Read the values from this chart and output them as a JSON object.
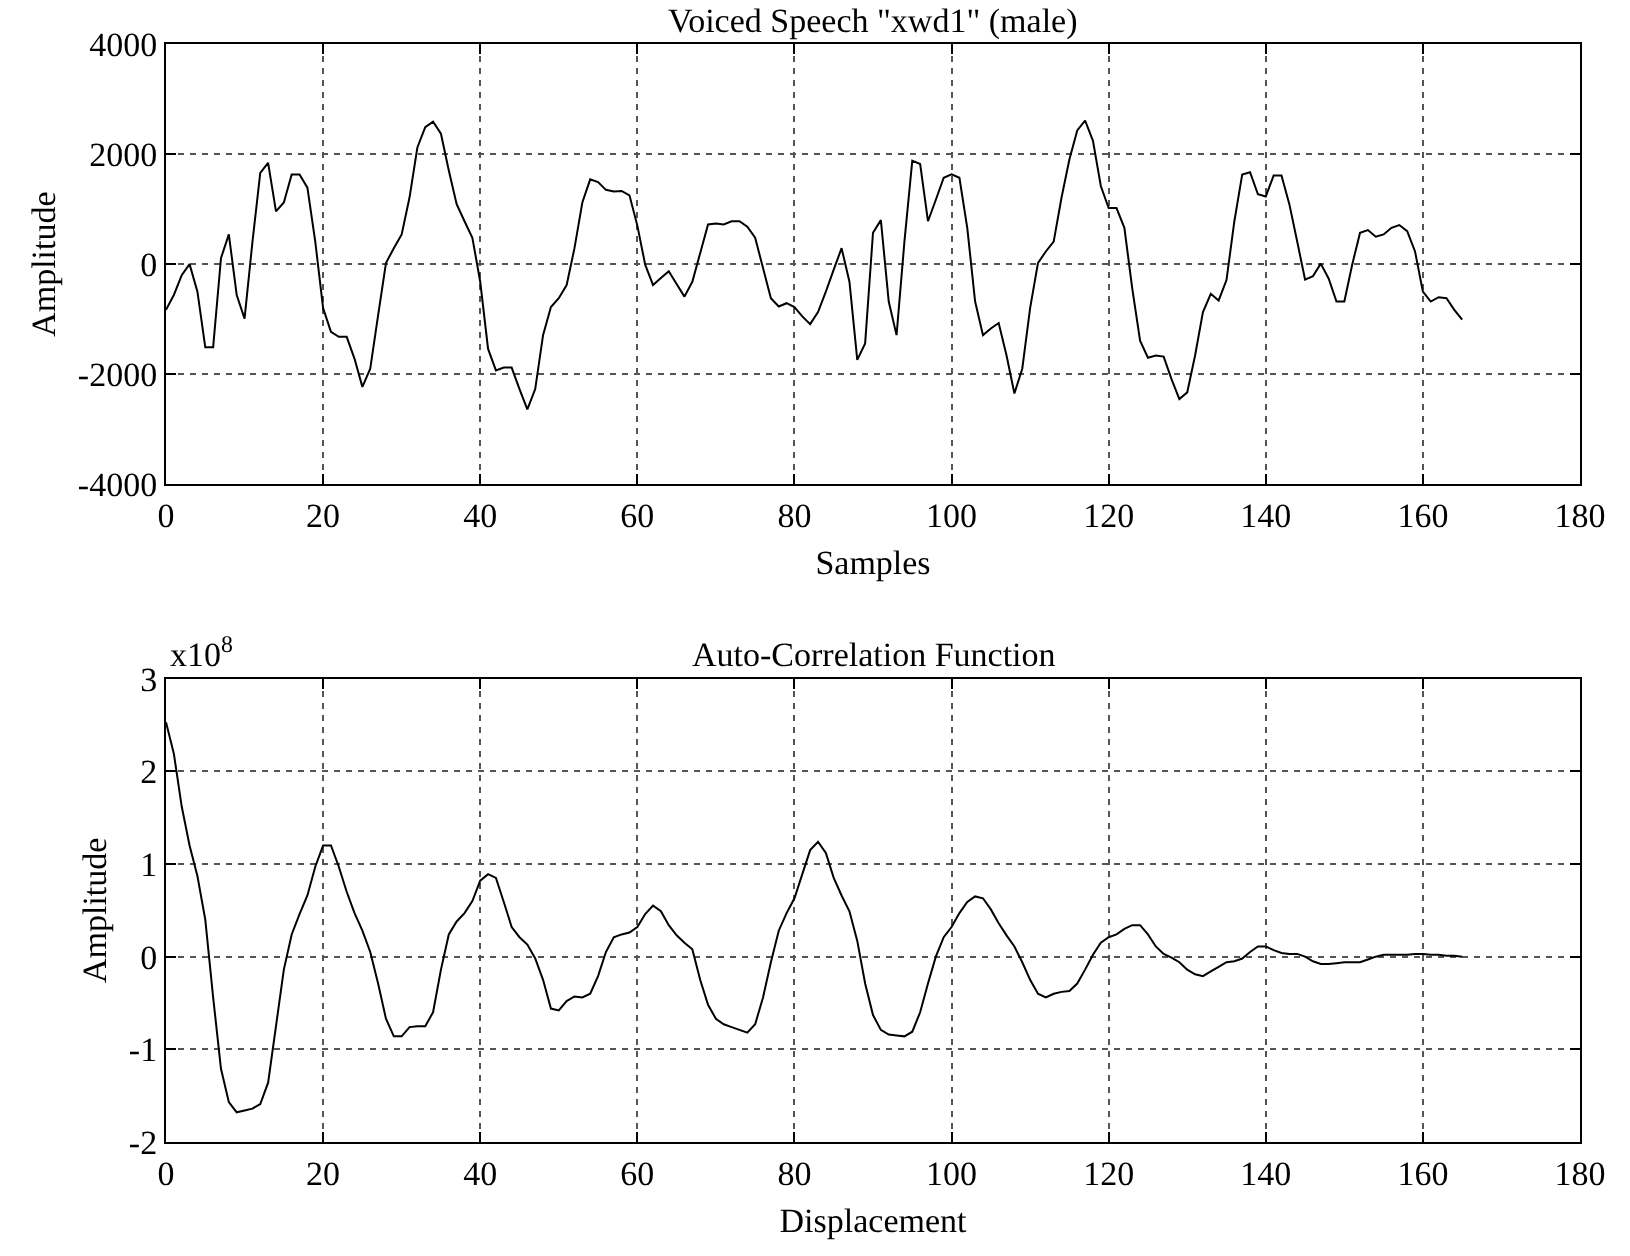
{
  "chart_data": [
    {
      "type": "line",
      "title": "Voiced Speech \"xwd1\" (male)",
      "xlabel": "Samples",
      "ylabel": "Amplitude",
      "xlim": [
        0,
        180
      ],
      "xticks": [
        0,
        20,
        40,
        60,
        80,
        100,
        120,
        140,
        160,
        180
      ],
      "ylim": [
        -4000,
        4000
      ],
      "yticks": [
        -4000,
        -2000,
        0,
        2000,
        4000
      ],
      "grid": true,
      "line_style": "solid",
      "series": [
        {
          "color": "#000000",
          "x": [
            0,
            1,
            2,
            3,
            4,
            5,
            6,
            7,
            8,
            9,
            10,
            11,
            12,
            13,
            14,
            15,
            16,
            17,
            18,
            19,
            20,
            21,
            22,
            23,
            24,
            25,
            26,
            27,
            28,
            29,
            30,
            31,
            32,
            33,
            34,
            35,
            36,
            37,
            38,
            39,
            40,
            41,
            42,
            43,
            44,
            45,
            46,
            47,
            48,
            49,
            50,
            51,
            52,
            53,
            54,
            55,
            56,
            57,
            58,
            59,
            60,
            61,
            62,
            63,
            64,
            65,
            66,
            67,
            68,
            69,
            70,
            71,
            72,
            73,
            74,
            75,
            76,
            77,
            78,
            79,
            80,
            81,
            82,
            83,
            84,
            85,
            86,
            87,
            88,
            89,
            90,
            91,
            92,
            93,
            94,
            95,
            96,
            97,
            98,
            99,
            100,
            101,
            102,
            103,
            104,
            105,
            106,
            107,
            108,
            109,
            110,
            111,
            112,
            113,
            114,
            115,
            116,
            117,
            118,
            119,
            120,
            121,
            122,
            123,
            124,
            125,
            126,
            127,
            128,
            129,
            130,
            131,
            132,
            133,
            134,
            135,
            136,
            137,
            138,
            139,
            140,
            141,
            142,
            143,
            144,
            145,
            146,
            147,
            148,
            149,
            150,
            151,
            152,
            153,
            154,
            155,
            156,
            157,
            158,
            159,
            160,
            161,
            162,
            163,
            164,
            165
          ],
          "values": [
            -830,
            -560,
            -200,
            0,
            -500,
            -1510,
            -1510,
            110,
            540,
            -560,
            -990,
            400,
            1660,
            1840,
            960,
            1120,
            1630,
            1630,
            1390,
            410,
            -800,
            -1230,
            -1320,
            -1320,
            -1720,
            -2230,
            -1900,
            -930,
            20,
            290,
            540,
            1210,
            2120,
            2490,
            2590,
            2370,
            1700,
            1090,
            780,
            480,
            -320,
            -1540,
            -1930,
            -1880,
            -1880,
            -2270,
            -2640,
            -2270,
            -1290,
            -780,
            -620,
            -380,
            290,
            1120,
            1540,
            1490,
            1350,
            1320,
            1330,
            1250,
            700,
            -10,
            -380,
            -250,
            -130,
            -360,
            -590,
            -320,
            200,
            720,
            740,
            720,
            780,
            780,
            680,
            480,
            -70,
            -620,
            -770,
            -710,
            -780,
            -950,
            -1090,
            -870,
            -500,
            -100,
            290,
            -320,
            -1740,
            -1440,
            570,
            800,
            -680,
            -1290,
            410,
            1880,
            1820,
            780,
            1170,
            1570,
            1630,
            1570,
            660,
            -680,
            -1290,
            -1170,
            -1070,
            -1660,
            -2350,
            -1900,
            -800,
            20,
            230,
            410,
            1210,
            1900,
            2430,
            2610,
            2240,
            1420,
            1020,
            1020,
            660,
            -440,
            -1390,
            -1700,
            -1660,
            -1680,
            -2090,
            -2450,
            -2330,
            -1660,
            -870,
            -540,
            -660,
            -290,
            780,
            1630,
            1670,
            1270,
            1230,
            1610,
            1610,
            1090,
            410,
            -280,
            -220,
            10,
            -260,
            -680,
            -680,
            -10,
            570,
            620,
            500,
            540,
            660,
            710,
            600,
            230,
            -500,
            -680,
            -600,
            -620,
            -830,
            -1010
          ]
        }
      ]
    },
    {
      "type": "line",
      "title": "Auto-Correlation Function",
      "xlabel": "Displacement",
      "ylabel": "Amplitude",
      "annotations": [
        "x10$^{8}$"
      ],
      "xlim": [
        0,
        180
      ],
      "xticks": [
        0,
        20,
        40,
        60,
        80,
        100,
        120,
        140,
        160,
        180
      ],
      "ylim": [
        -2,
        3
      ],
      "yticks": [
        -2,
        -1,
        0,
        1,
        2,
        3
      ],
      "grid": true,
      "line_style": "solid",
      "series": [
        {
          "color": "#000000",
          "x": [
            0,
            1,
            2,
            3,
            4,
            5,
            6,
            7,
            8,
            9,
            10,
            11,
            12,
            13,
            14,
            15,
            16,
            17,
            18,
            19,
            20,
            21,
            22,
            23,
            24,
            25,
            26,
            27,
            28,
            29,
            30,
            31,
            32,
            33,
            34,
            35,
            36,
            37,
            38,
            39,
            40,
            41,
            42,
            43,
            44,
            45,
            46,
            47,
            48,
            49,
            50,
            51,
            52,
            53,
            54,
            55,
            56,
            57,
            58,
            59,
            60,
            61,
            62,
            63,
            64,
            65,
            66,
            67,
            68,
            69,
            70,
            71,
            72,
            73,
            74,
            75,
            76,
            77,
            78,
            79,
            80,
            81,
            82,
            83,
            84,
            85,
            86,
            87,
            88,
            89,
            90,
            91,
            92,
            93,
            94,
            95,
            96,
            97,
            98,
            99,
            100,
            101,
            102,
            103,
            104,
            105,
            106,
            107,
            108,
            109,
            110,
            111,
            112,
            113,
            114,
            115,
            116,
            117,
            118,
            119,
            120,
            121,
            122,
            123,
            124,
            125,
            126,
            127,
            128,
            129,
            130,
            131,
            132,
            133,
            134,
            135,
            136,
            137,
            138,
            139,
            140,
            141,
            142,
            143,
            144,
            145,
            146,
            147,
            148,
            149,
            150,
            151,
            152,
            153,
            154,
            155,
            156,
            157,
            158,
            159,
            160,
            161,
            162,
            163,
            164,
            165
          ],
          "values": [
            2.53,
            2.19,
            1.62,
            1.2,
            0.87,
            0.4,
            -0.44,
            -1.21,
            -1.57,
            -1.68,
            -1.66,
            -1.64,
            -1.59,
            -1.36,
            -0.75,
            -0.14,
            0.24,
            0.46,
            0.66,
            0.97,
            1.2,
            1.2,
            0.97,
            0.7,
            0.47,
            0.28,
            0.05,
            -0.29,
            -0.67,
            -0.86,
            -0.86,
            -0.76,
            -0.75,
            -0.75,
            -0.6,
            -0.14,
            0.24,
            0.38,
            0.47,
            0.6,
            0.82,
            0.89,
            0.85,
            0.59,
            0.32,
            0.21,
            0.13,
            -0.02,
            -0.25,
            -0.56,
            -0.58,
            -0.48,
            -0.43,
            -0.44,
            -0.4,
            -0.21,
            0.05,
            0.21,
            0.24,
            0.26,
            0.32,
            0.46,
            0.55,
            0.49,
            0.34,
            0.23,
            0.15,
            0.08,
            -0.25,
            -0.52,
            -0.67,
            -0.73,
            -0.76,
            -0.79,
            -0.82,
            -0.73,
            -0.44,
            -0.06,
            0.28,
            0.47,
            0.63,
            0.89,
            1.15,
            1.24,
            1.12,
            0.85,
            0.66,
            0.49,
            0.17,
            -0.29,
            -0.63,
            -0.79,
            -0.84,
            -0.85,
            -0.86,
            -0.81,
            -0.6,
            -0.29,
            0.0,
            0.21,
            0.32,
            0.47,
            0.59,
            0.65,
            0.63,
            0.51,
            0.36,
            0.23,
            0.11,
            -0.06,
            -0.25,
            -0.4,
            -0.44,
            -0.4,
            -0.38,
            -0.37,
            -0.29,
            -0.14,
            0.02,
            0.15,
            0.21,
            0.24,
            0.3,
            0.34,
            0.34,
            0.24,
            0.11,
            0.03,
            -0.01,
            -0.06,
            -0.14,
            -0.19,
            -0.21,
            -0.16,
            -0.11,
            -0.06,
            -0.05,
            -0.02,
            0.05,
            0.11,
            0.11,
            0.07,
            0.04,
            0.03,
            0.03,
            0.0,
            -0.05,
            -0.08,
            -0.08,
            -0.07,
            -0.06,
            -0.06,
            -0.06,
            -0.03,
            0.0,
            0.02,
            0.02,
            0.02,
            0.02,
            0.03,
            0.03,
            0.02,
            0.02,
            0.01,
            0.01,
            0.0
          ]
        }
      ]
    }
  ]
}
